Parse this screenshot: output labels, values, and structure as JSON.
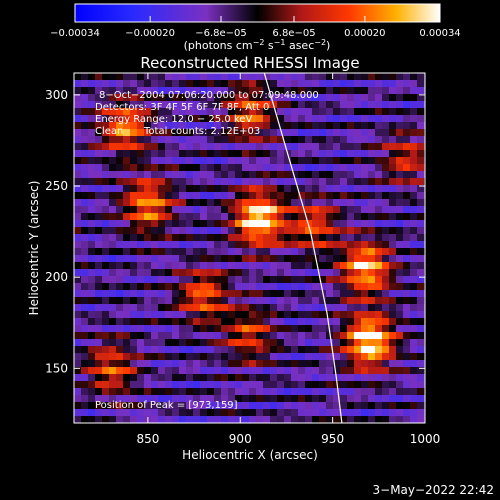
{
  "colorbar": {
    "ticks": [
      {
        "value": -0.00034,
        "label": "−0.00034"
      },
      {
        "value": -0.0002,
        "label": "−0.00020"
      },
      {
        "value": -6.8e-05,
        "label": "−6.8e−05"
      },
      {
        "value": 6.8e-05,
        "label": "6.8e−05"
      },
      {
        "value": 0.0002,
        "label": "0.00020"
      },
      {
        "value": 0.00034,
        "label": "0.00034"
      }
    ],
    "range": [
      -0.00034,
      0.00034
    ],
    "unit_main": "(photons cm",
    "unit_sup1": "−2",
    "unit_mid": " s",
    "unit_sup2": "−1",
    "unit_tail": " asec",
    "unit_sup3": "−2",
    "unit_close": ")"
  },
  "chart_data": {
    "type": "heatmap",
    "title": "Reconstructed RHESSI Image",
    "xlabel": "Heliocentric X (arcsec)",
    "ylabel": "Heliocentric Y (arcsec)",
    "xlim": [
      810,
      1000
    ],
    "ylim": [
      120,
      312
    ],
    "xticks": [
      850,
      900,
      950,
      1000
    ],
    "yticks": [
      150,
      200,
      250,
      300
    ],
    "annotations": {
      "time": "8−Oct−2004 07:06:20.000 to 07:09:48.000",
      "detectors": "Detectors: 3F 4F 5F 6F 7F 8F, Att 0",
      "energy": "Energy Range: 12.0 − 25.0 keV",
      "method": "Clean",
      "counts": "Total counts: 2.12E+03",
      "peak": "Position of Peak = [973,159]"
    },
    "peak": [
      973,
      159
    ],
    "sources": [
      {
        "x": 910,
        "y": 232,
        "amp": 1.0
      },
      {
        "x": 970,
        "y": 165,
        "amp": 1.0
      },
      {
        "x": 968,
        "y": 205,
        "amp": 0.85
      },
      {
        "x": 850,
        "y": 240,
        "amp": 0.7
      },
      {
        "x": 838,
        "y": 282,
        "amp": 0.7
      },
      {
        "x": 905,
        "y": 290,
        "amp": 0.6
      },
      {
        "x": 940,
        "y": 228,
        "amp": 0.55
      },
      {
        "x": 880,
        "y": 190,
        "amp": 0.6
      },
      {
        "x": 905,
        "y": 168,
        "amp": 0.5
      },
      {
        "x": 830,
        "y": 150,
        "amp": 0.55
      },
      {
        "x": 990,
        "y": 265,
        "amp": 0.45
      }
    ],
    "limb_curve": [
      [
        913,
        312
      ],
      [
        925,
        270
      ],
      [
        938,
        225
      ],
      [
        947,
        180
      ],
      [
        952,
        145
      ],
      [
        955,
        120
      ]
    ]
  },
  "footer": {
    "date": "3−May−2022 22:42"
  }
}
